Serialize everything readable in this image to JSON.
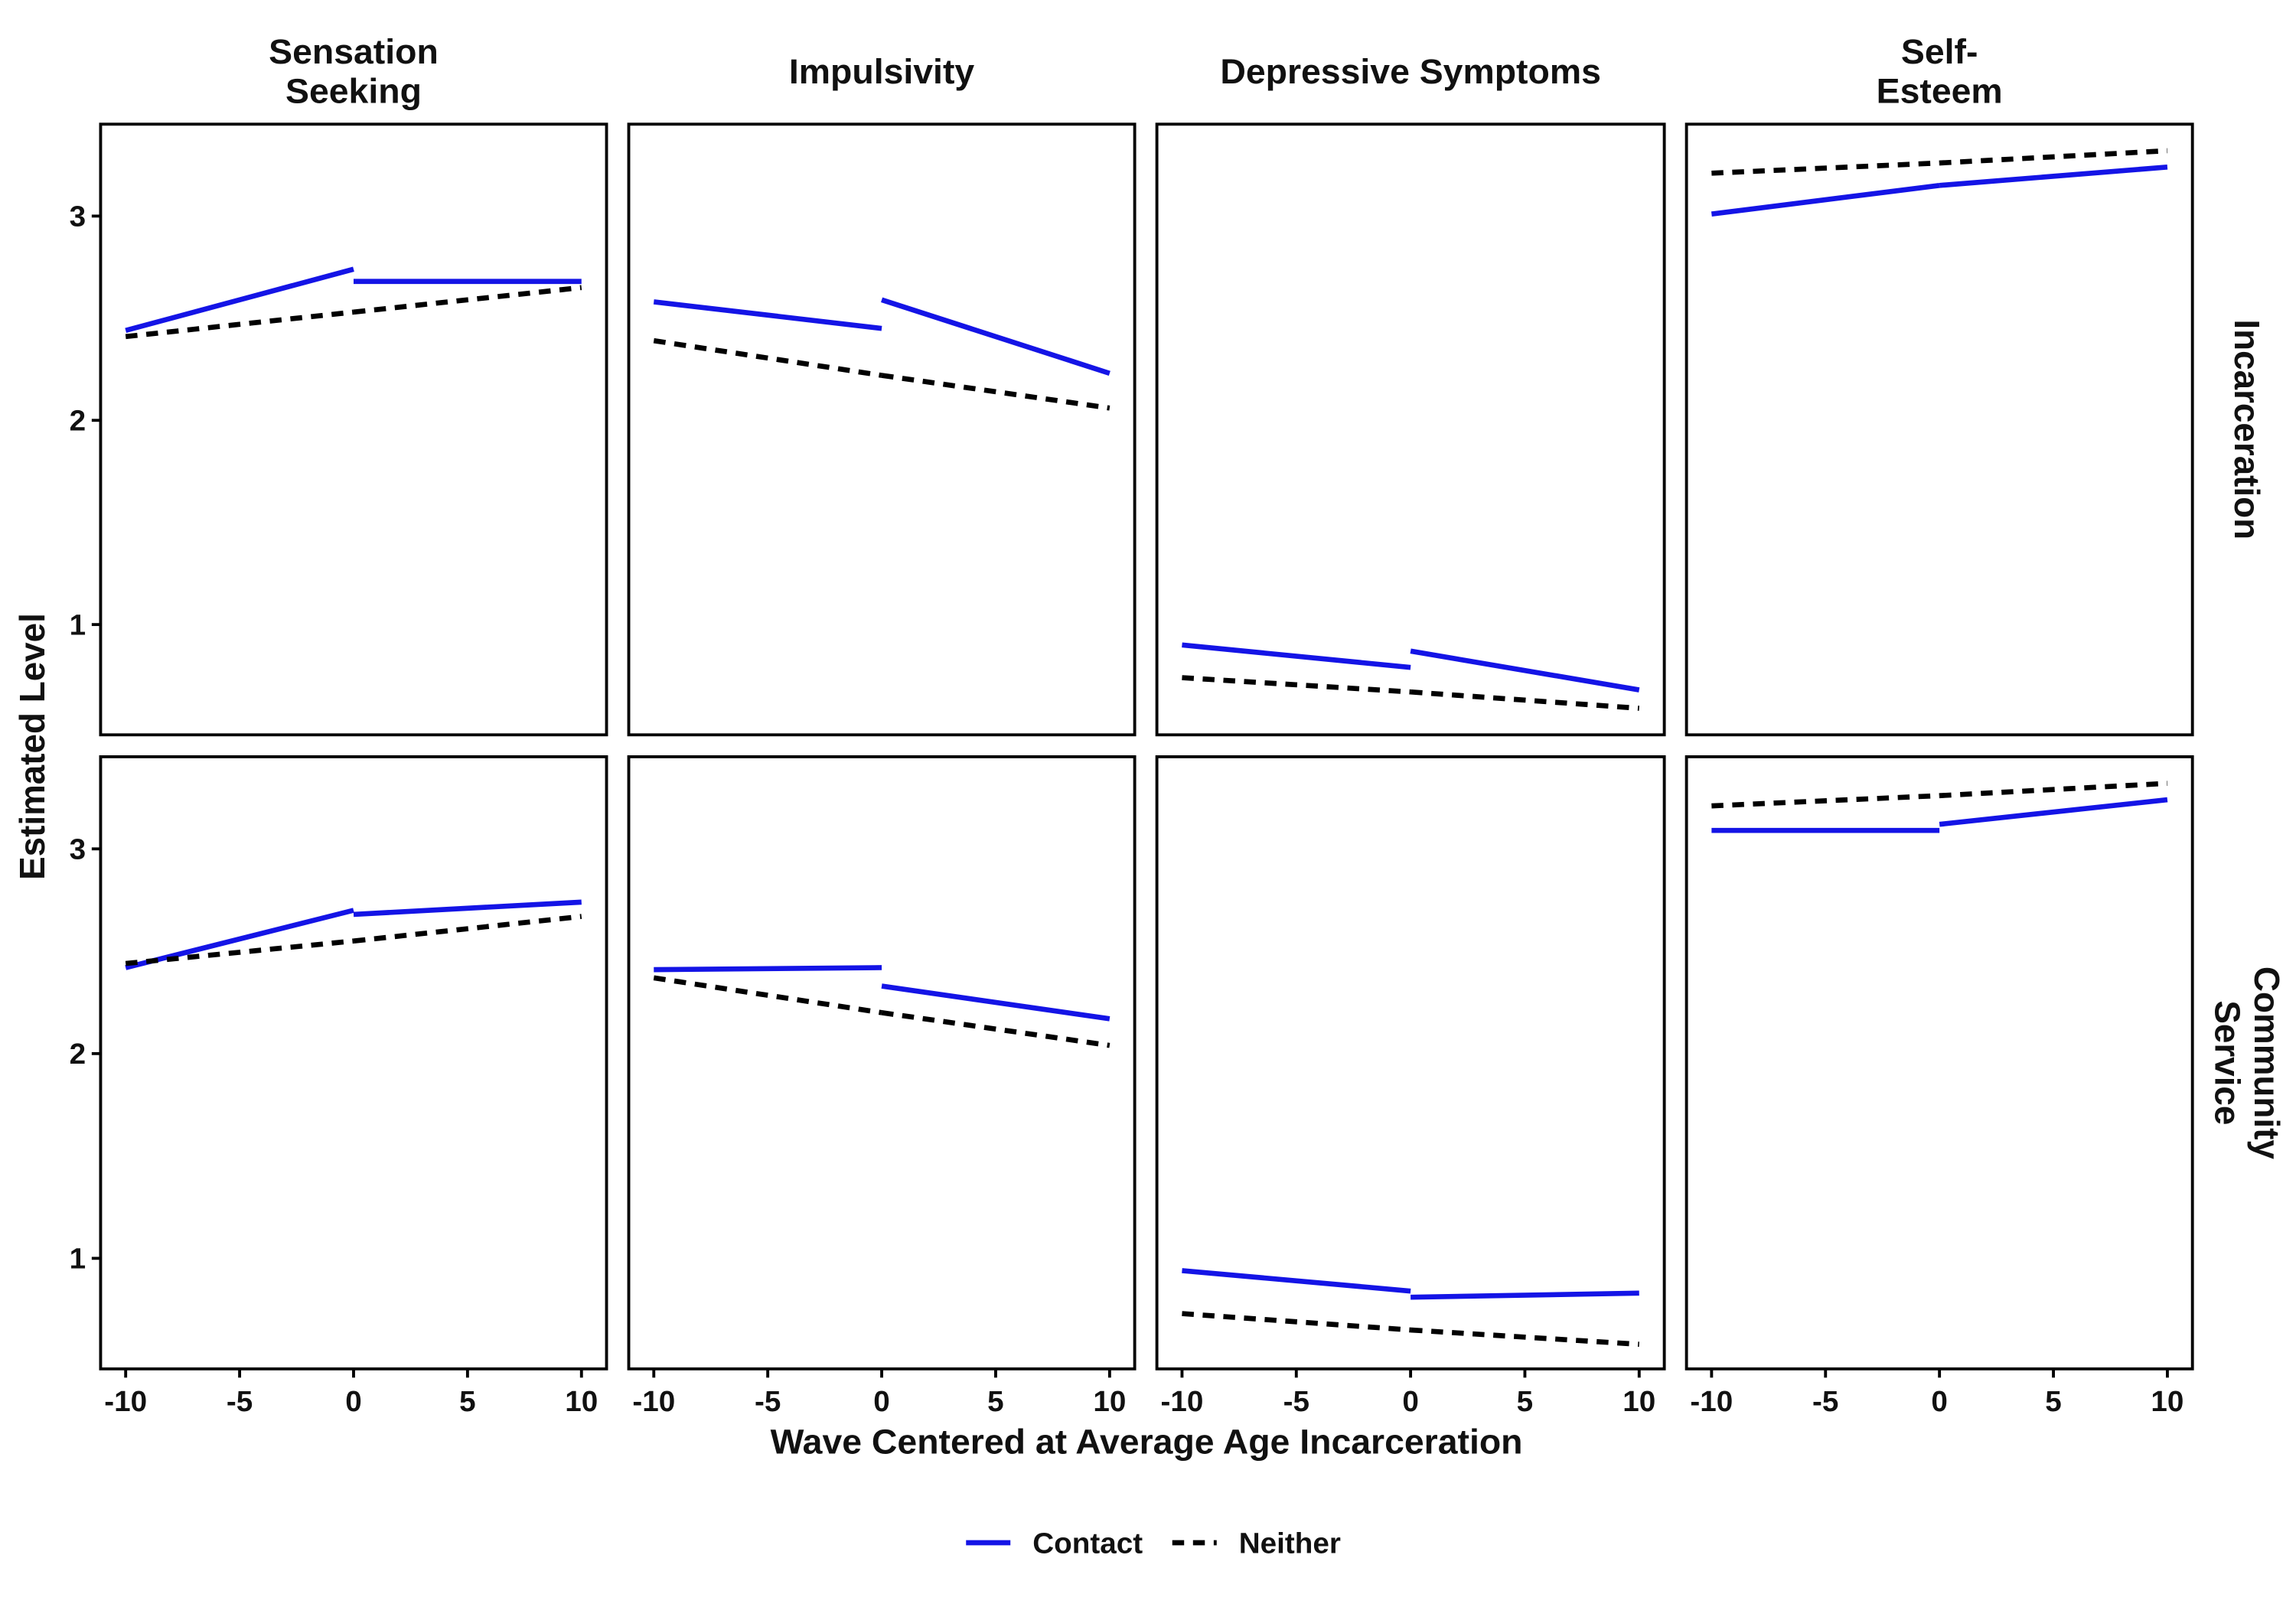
{
  "x_label": "Wave Centered at Average Age Incarceration",
  "y_label": "Estimated Level",
  "column_titles": [
    "Sensation\nSeeking",
    "Impulsivity",
    "Depressive Symptoms",
    "Self-\nEsteem"
  ],
  "row_titles": [
    "Incarceration",
    "Community\nService"
  ],
  "legend_position": "bottom",
  "chart_data": [
    {
      "type": "line",
      "x": [
        -10,
        0,
        0,
        10
      ],
      "xlim": [
        -11.1,
        11.1
      ],
      "ylim": [
        0.46,
        3.45
      ],
      "yticks": [
        1,
        2,
        3
      ],
      "series": [
        {
          "name": "Contact",
          "color": "#1414e6",
          "linestyle": "solid",
          "values": [
            2.44,
            2.74,
            2.68,
            2.68
          ]
        },
        {
          "name": "Neither",
          "color": "#000000",
          "linestyle": "dashed",
          "values": [
            2.41,
            2.53,
            2.53,
            2.65
          ]
        }
      ]
    },
    {
      "type": "line",
      "x": [
        -10,
        0,
        0,
        10
      ],
      "xlim": [
        -11.1,
        11.1
      ],
      "ylim": [
        0.46,
        3.45
      ],
      "series": [
        {
          "name": "Contact",
          "color": "#1414e6",
          "linestyle": "solid",
          "values": [
            2.58,
            2.45,
            2.59,
            2.23
          ]
        },
        {
          "name": "Neither",
          "color": "#000000",
          "linestyle": "dashed",
          "values": [
            2.39,
            2.22,
            2.22,
            2.06
          ]
        }
      ]
    },
    {
      "type": "line",
      "x": [
        -10,
        0,
        0,
        10
      ],
      "xlim": [
        -11.1,
        11.1
      ],
      "ylim": [
        0.46,
        3.45
      ],
      "series": [
        {
          "name": "Contact",
          "color": "#1414e6",
          "linestyle": "solid",
          "values": [
            0.9,
            0.79,
            0.87,
            0.68
          ]
        },
        {
          "name": "Neither",
          "color": "#000000",
          "linestyle": "dashed",
          "values": [
            0.74,
            0.67,
            0.67,
            0.59
          ]
        }
      ]
    },
    {
      "type": "line",
      "x": [
        -10,
        0,
        0,
        10
      ],
      "xlim": [
        -11.1,
        11.1
      ],
      "ylim": [
        0.46,
        3.45
      ],
      "series": [
        {
          "name": "Contact",
          "color": "#1414e6",
          "linestyle": "solid",
          "values": [
            3.01,
            3.15,
            3.15,
            3.24
          ]
        },
        {
          "name": "Neither",
          "color": "#000000",
          "linestyle": "dashed",
          "values": [
            3.21,
            3.26,
            3.26,
            3.32
          ]
        }
      ]
    },
    {
      "type": "line",
      "x": [
        -10,
        0,
        0,
        10
      ],
      "xlim": [
        -11.1,
        11.1
      ],
      "ylim": [
        0.46,
        3.45
      ],
      "yticks": [
        1,
        2,
        3
      ],
      "xticks": [
        -10,
        -5,
        0,
        5,
        10
      ],
      "series": [
        {
          "name": "Contact",
          "color": "#1414e6",
          "linestyle": "solid",
          "values": [
            2.42,
            2.7,
            2.68,
            2.74
          ]
        },
        {
          "name": "Neither",
          "color": "#000000",
          "linestyle": "dashed",
          "values": [
            2.44,
            2.55,
            2.55,
            2.67
          ]
        }
      ]
    },
    {
      "type": "line",
      "x": [
        -10,
        0,
        0,
        10
      ],
      "xlim": [
        -11.1,
        11.1
      ],
      "ylim": [
        0.46,
        3.45
      ],
      "xticks": [
        -10,
        -5,
        0,
        5,
        10
      ],
      "series": [
        {
          "name": "Contact",
          "color": "#1414e6",
          "linestyle": "solid",
          "values": [
            2.41,
            2.42,
            2.33,
            2.17
          ]
        },
        {
          "name": "Neither",
          "color": "#000000",
          "linestyle": "dashed",
          "values": [
            2.37,
            2.2,
            2.2,
            2.04
          ]
        }
      ]
    },
    {
      "type": "line",
      "x": [
        -10,
        0,
        0,
        10
      ],
      "xlim": [
        -11.1,
        11.1
      ],
      "ylim": [
        0.46,
        3.45
      ],
      "xticks": [
        -10,
        -5,
        0,
        5,
        10
      ],
      "series": [
        {
          "name": "Contact",
          "color": "#1414e6",
          "linestyle": "solid",
          "values": [
            0.94,
            0.84,
            0.81,
            0.83
          ]
        },
        {
          "name": "Neither",
          "color": "#000000",
          "linestyle": "dashed",
          "values": [
            0.73,
            0.65,
            0.65,
            0.58
          ]
        }
      ]
    },
    {
      "type": "line",
      "x": [
        -10,
        0,
        0,
        10
      ],
      "xlim": [
        -11.1,
        11.1
      ],
      "ylim": [
        0.46,
        3.45
      ],
      "xticks": [
        -10,
        -5,
        0,
        5,
        10
      ],
      "series": [
        {
          "name": "Contact",
          "color": "#1414e6",
          "linestyle": "solid",
          "values": [
            3.09,
            3.09,
            3.12,
            3.24
          ]
        },
        {
          "name": "Neither",
          "color": "#000000",
          "linestyle": "dashed",
          "values": [
            3.21,
            3.26,
            3.26,
            3.32
          ]
        }
      ]
    }
  ]
}
